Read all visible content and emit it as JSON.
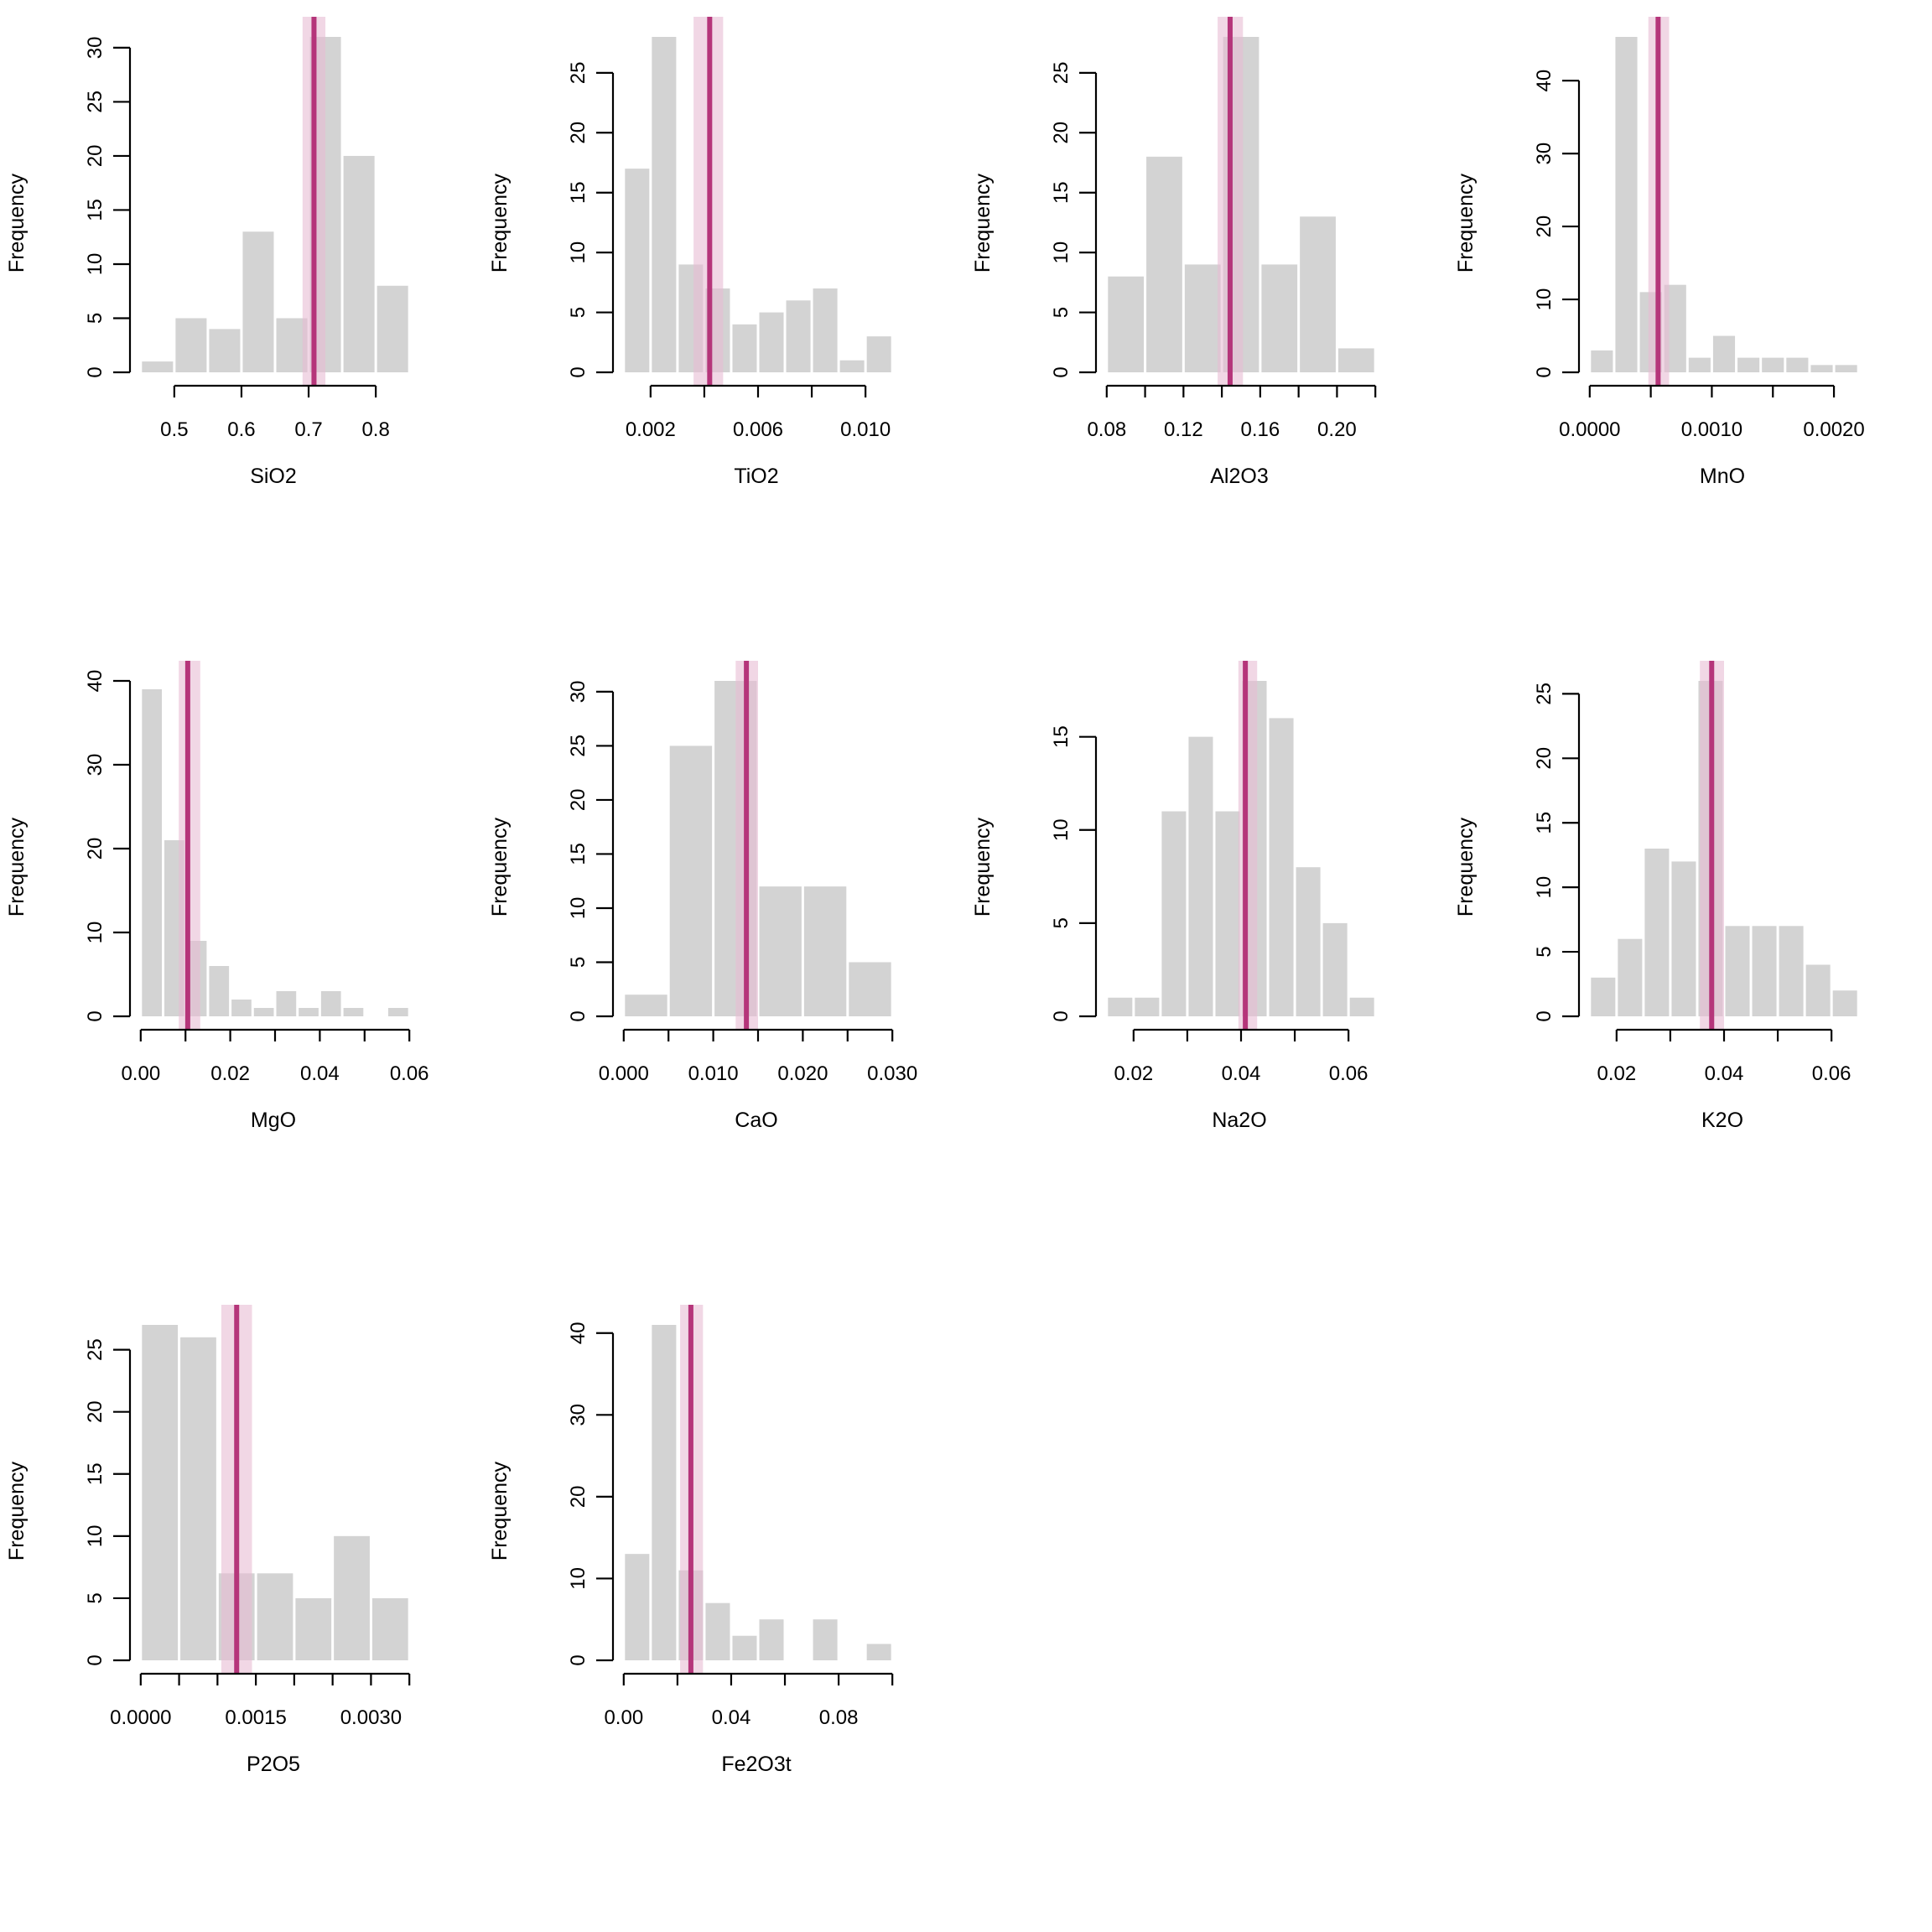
{
  "chart_data": [
    {
      "type": "bar",
      "subtype": "histogram",
      "title": "",
      "xlabel": "SiO2",
      "ylabel": "Frequency",
      "bin_edges": [
        0.45,
        0.5,
        0.55,
        0.6,
        0.65,
        0.7,
        0.75,
        0.8,
        0.85
      ],
      "values": [
        1,
        5,
        4,
        13,
        5,
        31,
        20,
        8
      ],
      "x_ticks": [
        0.5,
        0.6,
        0.7,
        0.8
      ],
      "x_tick_labels": [
        "0.5",
        "0.6",
        "0.7",
        "0.8"
      ],
      "y_ticks": [
        0,
        5,
        10,
        15,
        20,
        25,
        30
      ],
      "y_tick_labels": [
        "0",
        "5",
        "10",
        "15",
        "20",
        "25",
        "30"
      ],
      "xlim": [
        0.45,
        0.85
      ],
      "ylim": [
        0,
        31
      ],
      "reference_line": {
        "value": 0.708,
        "band": [
          0.691,
          0.725
        ]
      }
    },
    {
      "type": "bar",
      "subtype": "histogram",
      "title": "",
      "xlabel": "TiO2",
      "ylabel": "Frequency",
      "bin_edges": [
        0.001,
        0.002,
        0.003,
        0.004,
        0.005,
        0.006,
        0.007,
        0.008,
        0.009,
        0.01,
        0.011
      ],
      "values": [
        17,
        28,
        9,
        7,
        4,
        5,
        6,
        7,
        1,
        3
      ],
      "x_ticks": [
        0.002,
        0.004,
        0.006,
        0.008,
        0.01
      ],
      "x_tick_labels": [
        "0.002",
        "",
        "0.006",
        "",
        "0.010"
      ],
      "y_ticks": [
        0,
        5,
        10,
        15,
        20,
        25
      ],
      "y_tick_labels": [
        "0",
        "5",
        "10",
        "15",
        "20",
        "25"
      ],
      "xlim": [
        0.001,
        0.011
      ],
      "ylim": [
        0,
        28
      ],
      "reference_line": {
        "value": 0.0042,
        "band": [
          0.0036,
          0.0047
        ]
      }
    },
    {
      "type": "bar",
      "subtype": "histogram",
      "title": "",
      "xlabel": "Al2O3",
      "ylabel": "Frequency",
      "bin_edges": [
        0.08,
        0.1,
        0.12,
        0.14,
        0.16,
        0.18,
        0.2,
        0.22
      ],
      "values": [
        8,
        18,
        9,
        28,
        9,
        13,
        2
      ],
      "x_ticks": [
        0.08,
        0.1,
        0.12,
        0.14,
        0.16,
        0.18,
        0.2,
        0.22
      ],
      "x_tick_labels": [
        "0.08",
        "",
        "0.12",
        "",
        "0.16",
        "",
        "0.20",
        ""
      ],
      "y_ticks": [
        0,
        5,
        10,
        15,
        20,
        25
      ],
      "y_tick_labels": [
        "0",
        "5",
        "10",
        "15",
        "20",
        "25"
      ],
      "xlim": [
        0.08,
        0.22
      ],
      "ylim": [
        0,
        28
      ],
      "reference_line": {
        "value": 0.1443,
        "band": [
          0.1378,
          0.151
        ]
      }
    },
    {
      "type": "bar",
      "subtype": "histogram",
      "title": "",
      "xlabel": "MnO",
      "ylabel": "Frequency",
      "bin_edges": [
        0.0,
        0.0002,
        0.0004,
        0.0006,
        0.0008,
        0.001,
        0.0012,
        0.0014,
        0.0016,
        0.0018,
        0.002,
        0.0022
      ],
      "values": [
        3,
        46,
        11,
        12,
        2,
        5,
        2,
        2,
        2,
        1,
        1
      ],
      "x_ticks": [
        0.0,
        0.0005,
        0.001,
        0.0015,
        0.002
      ],
      "x_tick_labels": [
        "0.0000",
        "",
        "0.0010",
        "",
        "0.0020"
      ],
      "y_ticks": [
        0,
        10,
        20,
        30,
        40
      ],
      "y_tick_labels": [
        "0",
        "10",
        "20",
        "30",
        "40"
      ],
      "xlim": [
        0.0,
        0.0022
      ],
      "ylim": [
        0,
        46
      ],
      "reference_line": {
        "value": 0.00056,
        "band": [
          0.00048,
          0.00065
        ]
      }
    },
    {
      "type": "bar",
      "subtype": "histogram",
      "title": "",
      "xlabel": "MgO",
      "ylabel": "Frequency",
      "bin_edges": [
        0.0,
        0.005,
        0.01,
        0.015,
        0.02,
        0.025,
        0.03,
        0.035,
        0.04,
        0.045,
        0.05,
        0.055,
        0.06
      ],
      "values": [
        39,
        21,
        9,
        6,
        2,
        1,
        3,
        1,
        3,
        1,
        0,
        1
      ],
      "x_ticks": [
        0.0,
        0.01,
        0.02,
        0.03,
        0.04,
        0.05,
        0.06
      ],
      "x_tick_labels": [
        "0.00",
        "",
        "0.02",
        "",
        "0.04",
        "",
        "0.06"
      ],
      "y_ticks": [
        0,
        10,
        20,
        30,
        40
      ],
      "y_tick_labels": [
        "0",
        "10",
        "20",
        "30",
        "40"
      ],
      "xlim": [
        0.0,
        0.06
      ],
      "ylim": [
        0,
        40
      ],
      "reference_line": {
        "value": 0.0105,
        "band": [
          0.0085,
          0.0133
        ]
      }
    },
    {
      "type": "bar",
      "subtype": "histogram",
      "title": "",
      "xlabel": "CaO",
      "ylabel": "Frequency",
      "bin_edges": [
        0.0,
        0.005,
        0.01,
        0.015,
        0.02,
        0.025,
        0.03
      ],
      "values": [
        2,
        25,
        31,
        12,
        12,
        5
      ],
      "x_ticks": [
        0.0,
        0.005,
        0.01,
        0.015,
        0.02,
        0.025,
        0.03
      ],
      "x_tick_labels": [
        "0.000",
        "",
        "0.010",
        "",
        "0.020",
        "",
        "0.030"
      ],
      "y_ticks": [
        0,
        5,
        10,
        15,
        20,
        25,
        30
      ],
      "y_tick_labels": [
        "0",
        "5",
        "10",
        "15",
        "20",
        "25",
        "30"
      ],
      "xlim": [
        0.0,
        0.03
      ],
      "ylim": [
        0,
        31
      ],
      "reference_line": {
        "value": 0.0137,
        "band": [
          0.0125,
          0.015
        ]
      }
    },
    {
      "type": "bar",
      "subtype": "histogram",
      "title": "",
      "xlabel": "Na2O",
      "ylabel": "Frequency",
      "bin_edges": [
        0.015,
        0.02,
        0.025,
        0.03,
        0.035,
        0.04,
        0.045,
        0.05,
        0.055,
        0.06,
        0.065
      ],
      "values": [
        1,
        1,
        11,
        15,
        11,
        18,
        16,
        8,
        5,
        1
      ],
      "x_ticks": [
        0.02,
        0.03,
        0.04,
        0.05,
        0.06
      ],
      "x_tick_labels": [
        "0.02",
        "",
        "0.04",
        "",
        "0.06"
      ],
      "y_ticks": [
        0,
        5,
        10,
        15
      ],
      "y_tick_labels": [
        "0",
        "5",
        "10",
        "15"
      ],
      "xlim": [
        0.015,
        0.065
      ],
      "ylim": [
        0,
        18
      ],
      "reference_line": {
        "value": 0.0408,
        "band": [
          0.0395,
          0.043
        ]
      }
    },
    {
      "type": "bar",
      "subtype": "histogram",
      "title": "",
      "xlabel": "K2O",
      "ylabel": "Frequency",
      "bin_edges": [
        0.015,
        0.02,
        0.025,
        0.03,
        0.035,
        0.04,
        0.045,
        0.05,
        0.055,
        0.06,
        0.065
      ],
      "values": [
        3,
        6,
        13,
        12,
        26,
        7,
        7,
        7,
        4,
        2
      ],
      "x_ticks": [
        0.02,
        0.03,
        0.04,
        0.05,
        0.06
      ],
      "x_tick_labels": [
        "0.02",
        "",
        "0.04",
        "",
        "0.06"
      ],
      "y_ticks": [
        0,
        5,
        10,
        15,
        20,
        25
      ],
      "y_tick_labels": [
        "0",
        "5",
        "10",
        "15",
        "20",
        "25"
      ],
      "xlim": [
        0.015,
        0.065
      ],
      "ylim": [
        0,
        26
      ],
      "reference_line": {
        "value": 0.0377,
        "band": [
          0.0355,
          0.04
        ]
      }
    },
    {
      "type": "bar",
      "subtype": "histogram",
      "title": "",
      "xlabel": "P2O5",
      "ylabel": "Frequency",
      "bin_edges": [
        0.0,
        0.0005,
        0.001,
        0.0015,
        0.002,
        0.0025,
        0.003,
        0.0035
      ],
      "values": [
        27,
        26,
        7,
        7,
        5,
        10,
        5
      ],
      "x_ticks": [
        0.0,
        0.0005,
        0.001,
        0.0015,
        0.002,
        0.0025,
        0.003,
        0.0035
      ],
      "x_tick_labels": [
        "0.0000",
        "",
        "",
        "0.0015",
        "",
        "",
        "0.0030",
        ""
      ],
      "y_ticks": [
        0,
        5,
        10,
        15,
        20,
        25
      ],
      "y_tick_labels": [
        "0",
        "5",
        "10",
        "15",
        "20",
        "25"
      ],
      "xlim": [
        0.0,
        0.0035
      ],
      "ylim": [
        0,
        27
      ],
      "reference_line": {
        "value": 0.00125,
        "band": [
          0.00105,
          0.00145
        ]
      }
    },
    {
      "type": "bar",
      "subtype": "histogram",
      "title": "",
      "xlabel": "Fe2O3t",
      "ylabel": "Frequency",
      "bin_edges": [
        0.0,
        0.01,
        0.02,
        0.03,
        0.04,
        0.05,
        0.06,
        0.07,
        0.08,
        0.09,
        0.1
      ],
      "values": [
        13,
        41,
        11,
        7,
        3,
        5,
        0,
        5,
        0,
        2
      ],
      "x_ticks": [
        0.0,
        0.02,
        0.04,
        0.06,
        0.08,
        0.1
      ],
      "x_tick_labels": [
        "0.00",
        "",
        "0.04",
        "",
        "0.08",
        ""
      ],
      "y_ticks": [
        0,
        10,
        20,
        30,
        40
      ],
      "y_tick_labels": [
        "0",
        "10",
        "20",
        "30",
        "40"
      ],
      "xlim": [
        0.0,
        0.1
      ],
      "ylim": [
        0,
        41
      ],
      "reference_line": {
        "value": 0.025,
        "band": [
          0.021,
          0.0295
        ]
      }
    }
  ],
  "colors": {
    "bar_fill": "#d3d3d3",
    "reference_line": "#b5357a",
    "reference_band": "#e7bdd4",
    "axis": "#000000",
    "background": "#ffffff"
  }
}
